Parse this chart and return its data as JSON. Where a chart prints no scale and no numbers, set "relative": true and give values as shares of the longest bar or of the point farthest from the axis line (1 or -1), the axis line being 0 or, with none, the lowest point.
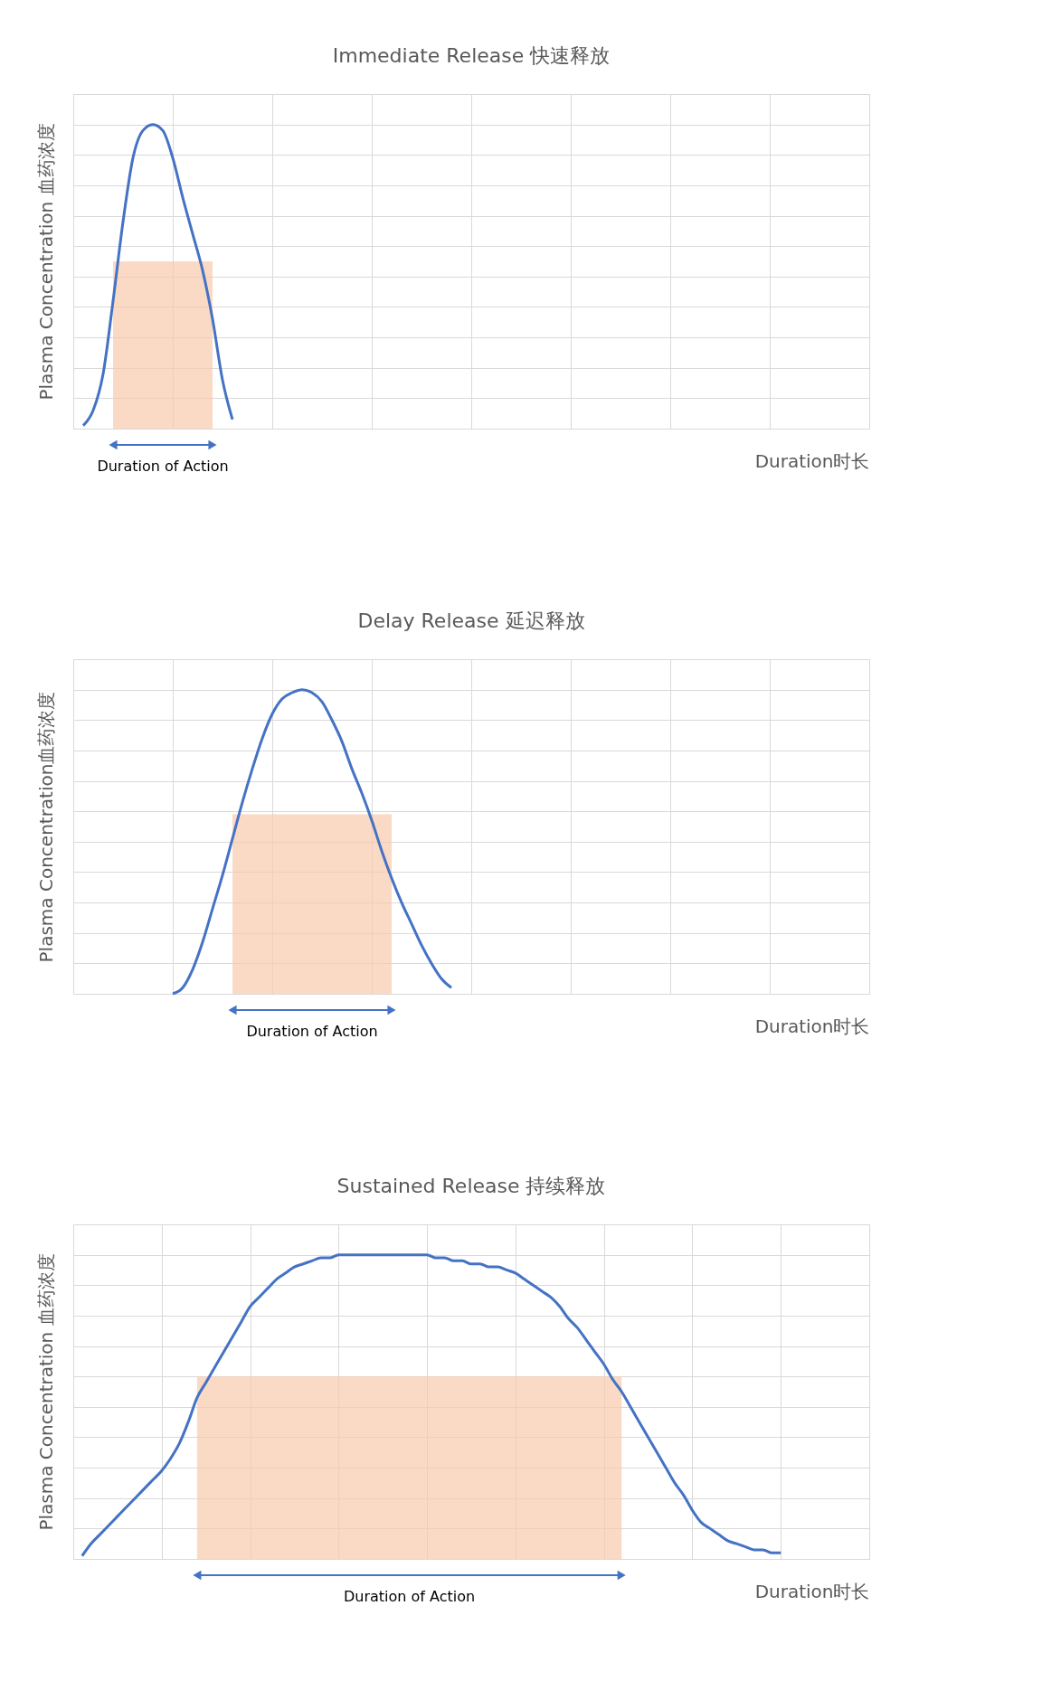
{
  "chart_data": [
    {
      "type": "line",
      "title": "Immediate Release 快速释放",
      "xlabel": "Duration时长",
      "ylabel": "Plasma Concentration 血药浓度",
      "relative": true,
      "grid": true,
      "tick_labels": false,
      "annotations": [
        "Duration of Action"
      ],
      "categories": [
        null,
        null,
        null,
        null,
        null,
        null,
        null,
        null,
        null,
        null,
        null,
        null,
        null,
        null,
        null,
        null,
        null,
        null,
        null,
        null,
        null,
        null,
        null,
        null,
        null,
        null,
        null,
        null,
        null,
        null,
        null,
        null,
        null,
        null,
        null,
        null,
        null,
        null,
        null,
        null,
        null,
        null,
        null,
        null,
        null,
        null,
        null,
        null,
        null,
        null,
        null,
        null,
        null,
        null,
        null,
        null,
        null,
        null,
        null,
        null,
        null,
        null,
        null,
        null,
        null,
        null,
        null,
        null,
        null,
        null,
        null,
        null,
        null,
        null,
        null,
        null,
        null,
        null,
        null,
        null,
        null
      ],
      "series": [
        {
          "type": "area",
          "color": "#f8cbad",
          "values": [
            null,
            null,
            null,
            null,
            0.55,
            0.55,
            0.55,
            0.55,
            0.55,
            0.55,
            0.55,
            0.55,
            0.55,
            0.55,
            0.55,
            null,
            null,
            null,
            null,
            null,
            null,
            null,
            null,
            null,
            null,
            null,
            null,
            null,
            null,
            null,
            null,
            null,
            null,
            null,
            null,
            null,
            null,
            null,
            null,
            null,
            null,
            null,
            null,
            null,
            null,
            null,
            null,
            null,
            null,
            null,
            null,
            null,
            null,
            null,
            null,
            null,
            null,
            null,
            null,
            null,
            null,
            null,
            null,
            null,
            null,
            null,
            null,
            null,
            null,
            null,
            null,
            null,
            null,
            null,
            null,
            null,
            null,
            null,
            null,
            null,
            null
          ]
        },
        {
          "type": "line",
          "color": "#4472c4",
          "values": [
            null,
            0.01,
            0.06,
            0.18,
            0.42,
            0.68,
            0.89,
            0.98,
            1,
            0.98,
            0.89,
            0.76,
            0.64,
            0.52,
            0.36,
            0.16,
            0.03,
            null,
            null,
            null,
            null,
            null,
            null,
            null,
            null,
            null,
            null,
            null,
            null,
            null,
            null,
            null,
            null,
            null,
            null,
            null,
            null,
            null,
            null,
            null,
            null,
            null,
            null,
            null,
            null,
            null,
            null,
            null,
            null,
            null,
            null,
            null,
            null,
            null,
            null,
            null,
            null,
            null,
            null,
            null,
            null,
            null,
            null,
            null,
            null,
            null,
            null,
            null,
            null,
            null,
            null,
            null,
            null,
            null,
            null,
            null,
            null,
            null,
            null,
            null,
            null
          ]
        }
      ]
    },
    {
      "type": "line",
      "title": "Delay Release 延迟释放",
      "xlabel": "Duration时长",
      "ylabel": "Plasma Concentration血药浓度",
      "relative": true,
      "grid": true,
      "tick_labels": false,
      "annotations": [
        "Duration of Action"
      ],
      "categories": [
        null,
        null,
        null,
        null,
        null,
        null,
        null,
        null,
        null,
        null,
        null,
        null,
        null,
        null,
        null,
        null,
        null,
        null,
        null,
        null,
        null,
        null,
        null,
        null,
        null,
        null,
        null,
        null,
        null,
        null,
        null,
        null,
        null,
        null,
        null,
        null,
        null,
        null,
        null,
        null,
        null,
        null,
        null,
        null,
        null,
        null,
        null,
        null,
        null,
        null,
        null,
        null,
        null,
        null,
        null,
        null,
        null,
        null,
        null,
        null,
        null,
        null,
        null,
        null,
        null,
        null,
        null,
        null,
        null,
        null,
        null,
        null,
        null,
        null,
        null,
        null,
        null,
        null,
        null,
        null,
        null
      ],
      "series": [
        {
          "type": "area",
          "color": "#f8cbad",
          "values": [
            null,
            null,
            null,
            null,
            null,
            null,
            null,
            null,
            null,
            null,
            null,
            null,
            null,
            null,
            null,
            null,
            0.59,
            0.59,
            0.59,
            0.59,
            0.59,
            0.59,
            0.59,
            0.59,
            0.59,
            0.59,
            0.59,
            0.59,
            0.59,
            0.59,
            0.59,
            0.59,
            0.59,
            null,
            null,
            null,
            null,
            null,
            null,
            null,
            null,
            null,
            null,
            null,
            null,
            null,
            null,
            null,
            null,
            null,
            null,
            null,
            null,
            null,
            null,
            null,
            null,
            null,
            null,
            null,
            null,
            null,
            null,
            null,
            null,
            null,
            null,
            null,
            null,
            null,
            null,
            null,
            null,
            null,
            null,
            null,
            null,
            null,
            null,
            null,
            null
          ]
        },
        {
          "type": "line",
          "color": "#4472c4",
          "values": [
            null,
            null,
            null,
            null,
            null,
            null,
            null,
            null,
            null,
            null,
            0,
            0.02,
            0.08,
            0.17,
            0.28,
            0.39,
            0.51,
            0.63,
            0.74,
            0.84,
            0.92,
            0.97,
            0.99,
            1,
            0.99,
            0.96,
            0.9,
            0.83,
            0.74,
            0.66,
            0.57,
            0.47,
            0.38,
            0.3,
            0.23,
            0.16,
            0.1,
            0.05,
            0.02,
            null,
            null,
            null,
            null,
            null,
            null,
            null,
            null,
            null,
            null,
            null,
            null,
            null,
            null,
            null,
            null,
            null,
            null,
            null,
            null,
            null,
            null,
            null,
            null,
            null,
            null,
            null,
            null,
            null,
            null,
            null,
            null,
            null,
            null,
            null,
            null,
            null,
            null,
            null,
            null,
            null,
            null
          ]
        }
      ]
    },
    {
      "type": "line",
      "title": "Sustained Release 持续释放",
      "xlabel": "Duration时长",
      "ylabel": "Plasma Concentration 血药浓度",
      "relative": true,
      "grid": true,
      "tick_labels": false,
      "annotations": [
        "Duration of Action"
      ],
      "categories": [
        null,
        null,
        null,
        null,
        null,
        null,
        null,
        null,
        null,
        null,
        null,
        null,
        null,
        null,
        null,
        null,
        null,
        null,
        null,
        null,
        null,
        null,
        null,
        null,
        null,
        null,
        null,
        null,
        null,
        null,
        null,
        null,
        null,
        null,
        null,
        null,
        null,
        null,
        null,
        null,
        null,
        null,
        null,
        null,
        null,
        null,
        null,
        null,
        null,
        null,
        null,
        null,
        null,
        null,
        null,
        null,
        null,
        null,
        null,
        null,
        null,
        null,
        null,
        null,
        null,
        null,
        null,
        null,
        null,
        null,
        null,
        null,
        null,
        null,
        null,
        null,
        null,
        null,
        null,
        null,
        null,
        null,
        null,
        null,
        null,
        null,
        null,
        null,
        null,
        null,
        null
      ],
      "series": [
        {
          "type": "area",
          "color": "#f8cbad",
          "values": [
            null,
            null,
            null,
            null,
            null,
            null,
            null,
            null,
            null,
            null,
            null,
            null,
            null,
            null,
            0.6,
            0.6,
            0.6,
            0.6,
            0.6,
            0.6,
            0.6,
            0.6,
            0.6,
            0.6,
            0.6,
            0.6,
            0.6,
            0.6,
            0.6,
            0.6,
            0.6,
            0.6,
            0.6,
            0.6,
            0.6,
            0.6,
            0.6,
            0.6,
            0.6,
            0.6,
            0.6,
            0.6,
            0.6,
            0.6,
            0.6,
            0.6,
            0.6,
            0.6,
            0.6,
            0.6,
            0.6,
            0.6,
            0.6,
            0.6,
            0.6,
            0.6,
            0.6,
            0.6,
            0.6,
            0.6,
            0.6,
            0.6,
            0.6,
            null,
            null,
            null,
            null,
            null,
            null,
            null,
            null,
            null,
            null,
            null,
            null,
            null,
            null,
            null,
            null,
            null,
            null,
            null,
            null,
            null,
            null,
            null,
            null,
            null,
            null,
            null,
            null
          ]
        },
        {
          "type": "line",
          "color": "#4472c4",
          "values": [
            null,
            0.01,
            0.05,
            0.08,
            0.11,
            0.14,
            0.17,
            0.2,
            0.23,
            0.26,
            0.29,
            0.33,
            0.38,
            0.45,
            0.53,
            0.58,
            0.63,
            0.68,
            0.73,
            0.78,
            0.83,
            0.86,
            0.89,
            0.92,
            0.94,
            0.96,
            0.97,
            0.98,
            0.99,
            0.99,
            1,
            1,
            1,
            1,
            1,
            1,
            1,
            1,
            1,
            1,
            1,
            0.99,
            0.99,
            0.98,
            0.98,
            0.97,
            0.97,
            0.96,
            0.96,
            0.95,
            0.94,
            0.92,
            0.9,
            0.88,
            0.86,
            0.83,
            0.79,
            0.76,
            0.72,
            0.68,
            0.64,
            0.59,
            0.55,
            0.5,
            0.45,
            0.4,
            0.35,
            0.3,
            0.25,
            0.21,
            0.16,
            0.12,
            0.1,
            0.08,
            0.06,
            0.05,
            0.04,
            0.03,
            0.03,
            0.02,
            0.02,
            null,
            null,
            null,
            null,
            null,
            null,
            null,
            null,
            null,
            null
          ]
        }
      ]
    }
  ]
}
